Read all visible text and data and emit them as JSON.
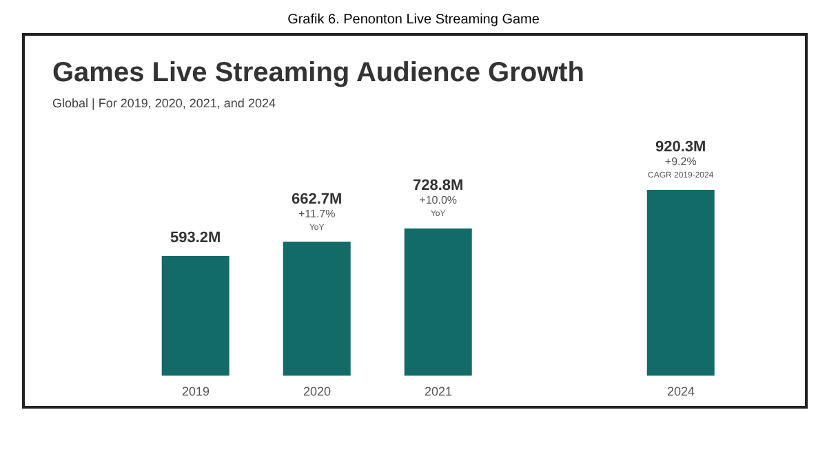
{
  "chart_data": {
    "type": "bar",
    "title": "Grafik 6. Penonton Live Streaming Game",
    "subtitle": "Games Live Streaming Audience Growth",
    "categories": [
      "2019",
      "2020",
      "2021",
      null,
      "2024"
    ],
    "values": [
      593.2,
      662.7,
      728.8,
      null,
      920.3
    ],
    "value_labels": [
      "593.2M",
      "662.7M",
      "728.8M",
      null,
      "920.3M"
    ],
    "color": "#136b68",
    "annotations": [
      "Global | For 2019, 2020, 2021, and 2024",
      {
        "text": "+11.7% YoY",
        "x": "2020",
        "y": 662.7
      },
      {
        "text": "+10.0% YoY",
        "x": "2021",
        "y": 728.8
      },
      {
        "text": "+9.2% CAGR 2019-2024",
        "x": "2024",
        "y": 920.3
      }
    ],
    "grid": false,
    "legend": false
  }
}
